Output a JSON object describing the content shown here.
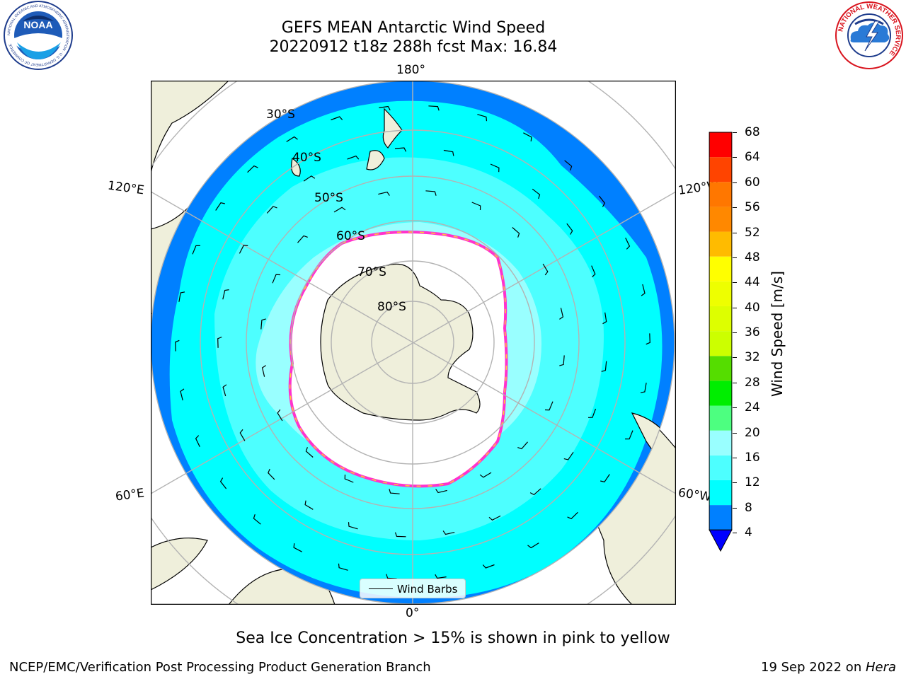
{
  "header": {
    "title_line1": "GEFS MEAN Antarctic Wind Speed",
    "title_line2": "20220912 t18z 288h fcst   Max: 16.84"
  },
  "logos": {
    "noaa_text": "NOAA",
    "noaa_ring": "NATIONAL OCEANIC AND ATMOSPHERIC ADMINISTRATION · U.S. DEPARTMENT OF COMMERCE",
    "nws_ring": "NATIONAL WEATHER SERVICE"
  },
  "map": {
    "projection": "south-polar-stereographic",
    "longitude_labels": {
      "top": "180°",
      "bottom": "0°",
      "left_upper": "120°E",
      "left_lower": "60°E",
      "right_upper": "120°W",
      "right_lower": "60°W"
    },
    "latitude_labels": [
      "30°S",
      "40°S",
      "50°S",
      "60°S",
      "70°S",
      "80°S"
    ],
    "legend_label": "Wind Barbs",
    "colors": {
      "land": "#efefdb",
      "speed_4_8": "#0080ff",
      "speed_8_12": "#00ffff",
      "speed_12_16": "#4dffff",
      "speed_16_20": "#99ffff",
      "ice_edge": "#ff33cc",
      "ice_inner": "#ffcc33",
      "grid": "#b3b3b3"
    }
  },
  "colorbar": {
    "label": "Wind Speed [m/s]",
    "ticks": [
      "4",
      "8",
      "12",
      "16",
      "20",
      "24",
      "28",
      "32",
      "36",
      "40",
      "44",
      "48",
      "52",
      "56",
      "60",
      "64",
      "68"
    ],
    "bins": [
      {
        "from": 4,
        "to": 8,
        "color": "#0080ff"
      },
      {
        "from": 8,
        "to": 12,
        "color": "#00ffff"
      },
      {
        "from": 12,
        "to": 16,
        "color": "#4dffff"
      },
      {
        "from": 16,
        "to": 20,
        "color": "#99ffff"
      },
      {
        "from": 20,
        "to": 24,
        "color": "#4dff80"
      },
      {
        "from": 24,
        "to": 28,
        "color": "#00ee00"
      },
      {
        "from": 28,
        "to": 32,
        "color": "#55dd00"
      },
      {
        "from": 32,
        "to": 36,
        "color": "#ccff00"
      },
      {
        "from": 36,
        "to": 40,
        "color": "#ddff00"
      },
      {
        "from": 40,
        "to": 44,
        "color": "#eeff00"
      },
      {
        "from": 44,
        "to": 48,
        "color": "#ffff00"
      },
      {
        "from": 48,
        "to": 52,
        "color": "#ffbb00"
      },
      {
        "from": 52,
        "to": 56,
        "color": "#ff8800"
      },
      {
        "from": 56,
        "to": 60,
        "color": "#ff7700"
      },
      {
        "from": 60,
        "to": 64,
        "color": "#ff4400"
      },
      {
        "from": 64,
        "to": 68,
        "color": "#ff0000"
      }
    ],
    "extend_color": "#0000ff"
  },
  "note": "Sea Ice Concentration > 15% is shown in pink to yellow",
  "footer": {
    "left": "NCEP/EMC/Verification Post Processing Product Generation Branch",
    "right_prefix": "19 Sep 2022 on ",
    "right_host": "Hera"
  }
}
